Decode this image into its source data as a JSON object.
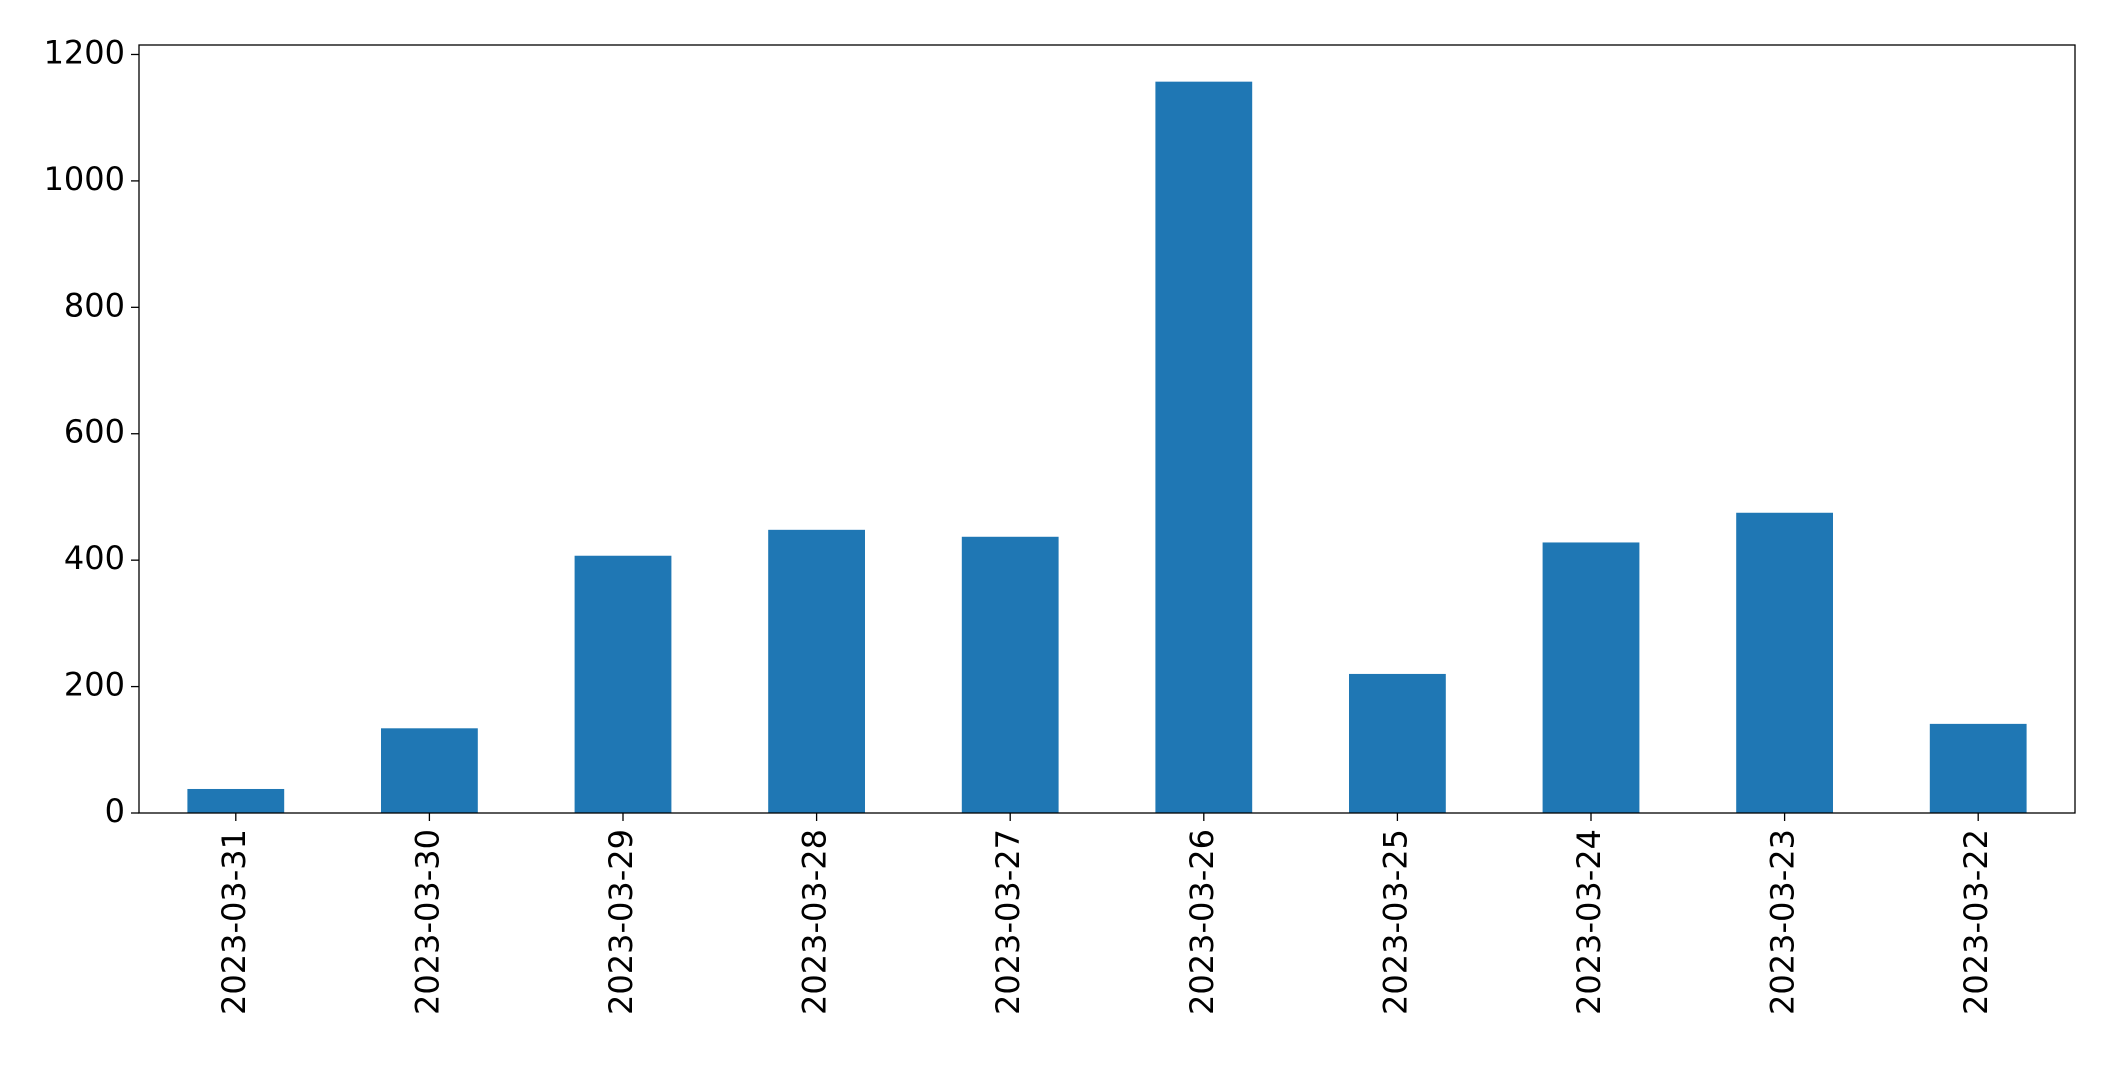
{
  "chart_data": {
    "type": "bar",
    "categories": [
      "2023-03-31",
      "2023-03-30",
      "2023-03-29",
      "2023-03-28",
      "2023-03-27",
      "2023-03-26",
      "2023-03-25",
      "2023-03-24",
      "2023-03-23",
      "2023-03-22"
    ],
    "values": [
      38,
      134,
      407,
      448,
      437,
      1157,
      220,
      428,
      475,
      141
    ],
    "color": "#1f77b4",
    "ylim": [
      0,
      1215
    ],
    "yticks": [
      0,
      200,
      400,
      600,
      800,
      1000,
      1200
    ],
    "grid": false
  }
}
